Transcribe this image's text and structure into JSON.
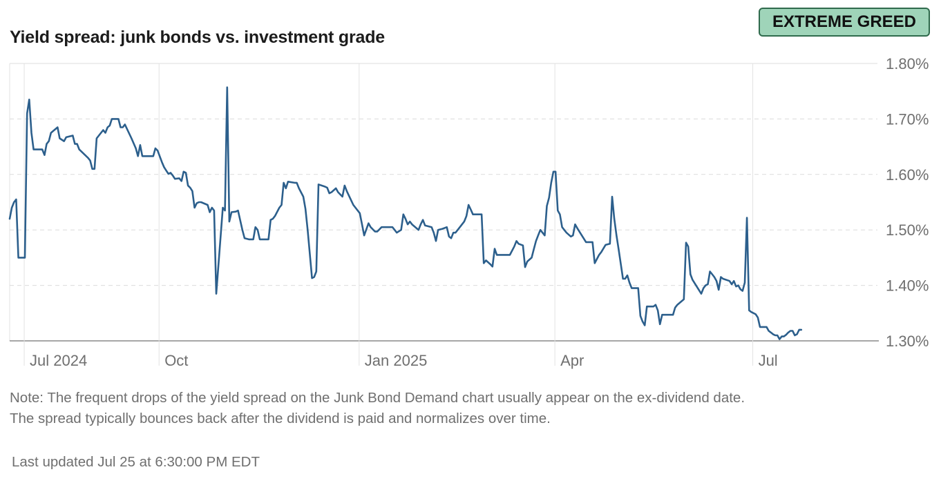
{
  "badge": {
    "label": "EXTREME GREED",
    "bg_color": "#9fd4b9",
    "border_color": "#2f6a4c"
  },
  "note": {
    "line1": "Note: The frequent drops of the yield spread on the Junk Bond Demand chart usually appear on the ex-dividend date.",
    "line2": "The spread typically bounces back after the dividend is paid and normalizes over time."
  },
  "last_updated": "Last updated Jul 25 at 6:30:00 PM EDT",
  "chart_data": {
    "type": "line",
    "title": "Yield spread: junk bonds vs. investment grade",
    "xlabel": "",
    "ylabel": "",
    "line_color": "#2c5f8c",
    "x_unit": "days since 2024-06-24",
    "xlim": [
      0,
      399
    ],
    "ylim": [
      1.3,
      1.8
    ],
    "yticks": [
      {
        "value": 1.8,
        "label": "1.80%"
      },
      {
        "value": 1.7,
        "label": "1.70%"
      },
      {
        "value": 1.6,
        "label": "1.60%"
      },
      {
        "value": 1.5,
        "label": "1.50%"
      },
      {
        "value": 1.4,
        "label": "1.40%"
      },
      {
        "value": 1.3,
        "label": "1.30%"
      }
    ],
    "xticks": [
      {
        "value": 7,
        "label": "Jul 2024"
      },
      {
        "value": 69,
        "label": "Oct"
      },
      {
        "value": 161,
        "label": "Jan 2025"
      },
      {
        "value": 251,
        "label": "Apr"
      },
      {
        "value": 342,
        "label": "Jul"
      }
    ],
    "series": [
      {
        "name": "Yield spread",
        "points": [
          [
            0,
            1.52
          ],
          [
            1,
            1.54
          ],
          [
            2,
            1.55
          ],
          [
            3,
            1.555
          ],
          [
            4,
            1.45
          ],
          [
            7,
            1.45
          ],
          [
            8,
            1.71
          ],
          [
            9,
            1.735
          ],
          [
            10,
            1.675
          ],
          [
            11,
            1.645
          ],
          [
            15,
            1.645
          ],
          [
            16,
            1.635
          ],
          [
            17,
            1.655
          ],
          [
            18,
            1.66
          ],
          [
            19,
            1.675
          ],
          [
            22,
            1.685
          ],
          [
            23,
            1.665
          ],
          [
            25,
            1.66
          ],
          [
            26,
            1.667
          ],
          [
            29,
            1.67
          ],
          [
            30,
            1.655
          ],
          [
            31,
            1.655
          ],
          [
            32,
            1.645
          ],
          [
            36,
            1.63
          ],
          [
            37,
            1.625
          ],
          [
            38,
            1.61
          ],
          [
            39,
            1.61
          ],
          [
            40,
            1.665
          ],
          [
            42,
            1.675
          ],
          [
            43,
            1.68
          ],
          [
            44,
            1.675
          ],
          [
            45,
            1.685
          ],
          [
            46,
            1.688
          ],
          [
            47,
            1.7
          ],
          [
            50,
            1.7
          ],
          [
            51,
            1.685
          ],
          [
            52,
            1.685
          ],
          [
            53,
            1.69
          ],
          [
            56,
            1.665
          ],
          [
            58,
            1.647
          ],
          [
            59,
            1.633
          ],
          [
            60,
            1.653
          ],
          [
            61,
            1.633
          ],
          [
            66,
            1.633
          ],
          [
            67,
            1.647
          ],
          [
            68,
            1.643
          ],
          [
            70,
            1.622
          ],
          [
            71,
            1.613
          ],
          [
            72,
            1.607
          ],
          [
            73,
            1.601
          ],
          [
            74,
            1.603
          ],
          [
            75,
            1.598
          ],
          [
            76,
            1.592
          ],
          [
            78,
            1.593
          ],
          [
            79,
            1.588
          ],
          [
            80,
            1.605
          ],
          [
            81,
            1.603
          ],
          [
            82,
            1.58
          ],
          [
            83,
            1.576
          ],
          [
            84,
            1.57
          ],
          [
            85,
            1.54
          ],
          [
            86,
            1.548
          ],
          [
            87,
            1.55
          ],
          [
            88,
            1.55
          ],
          [
            91,
            1.545
          ],
          [
            92,
            1.532
          ],
          [
            93,
            1.54
          ],
          [
            94,
            1.535
          ],
          [
            95,
            1.385
          ],
          [
            98,
            1.54
          ],
          [
            99,
            1.535
          ],
          [
            100,
            1.757
          ],
          [
            101,
            1.515
          ],
          [
            102,
            1.532
          ],
          [
            104,
            1.533
          ],
          [
            105,
            1.535
          ],
          [
            107,
            1.5
          ],
          [
            108,
            1.485
          ],
          [
            110,
            1.483
          ],
          [
            112,
            1.483
          ],
          [
            113,
            1.505
          ],
          [
            114,
            1.5
          ],
          [
            115,
            1.483
          ],
          [
            116,
            1.483
          ],
          [
            119,
            1.483
          ],
          [
            120,
            1.518
          ],
          [
            121,
            1.52
          ],
          [
            122,
            1.525
          ],
          [
            124,
            1.54
          ],
          [
            125,
            1.545
          ],
          [
            126,
            1.585
          ],
          [
            127,
            1.575
          ],
          [
            128,
            1.587
          ],
          [
            131,
            1.585
          ],
          [
            132,
            1.585
          ],
          [
            133,
            1.575
          ],
          [
            135,
            1.56
          ],
          [
            136,
            1.538
          ],
          [
            137,
            1.5
          ],
          [
            139,
            1.413
          ],
          [
            140,
            1.415
          ],
          [
            141,
            1.425
          ],
          [
            142,
            1.582
          ],
          [
            145,
            1.578
          ],
          [
            146,
            1.576
          ],
          [
            147,
            1.566
          ],
          [
            148,
            1.568
          ],
          [
            150,
            1.575
          ],
          [
            151,
            1.568
          ],
          [
            153,
            1.56
          ],
          [
            154,
            1.58
          ],
          [
            155,
            1.57
          ],
          [
            158,
            1.545
          ],
          [
            161,
            1.53
          ],
          [
            162,
            1.51
          ],
          [
            163,
            1.49
          ],
          [
            165,
            1.512
          ],
          [
            166,
            1.505
          ],
          [
            168,
            1.497
          ],
          [
            169,
            1.497
          ],
          [
            171,
            1.505
          ],
          [
            176,
            1.505
          ],
          [
            177,
            1.5
          ],
          [
            178,
            1.495
          ],
          [
            180,
            1.5
          ],
          [
            181,
            1.528
          ],
          [
            182,
            1.52
          ],
          [
            183,
            1.51
          ],
          [
            184,
            1.515
          ],
          [
            185,
            1.51
          ],
          [
            188,
            1.5
          ],
          [
            189,
            1.51
          ],
          [
            190,
            1.518
          ],
          [
            191,
            1.508
          ],
          [
            194,
            1.505
          ],
          [
            195,
            1.495
          ],
          [
            196,
            1.48
          ],
          [
            197,
            1.5
          ],
          [
            199,
            1.502
          ],
          [
            201,
            1.505
          ],
          [
            202,
            1.488
          ],
          [
            203,
            1.485
          ],
          [
            204,
            1.495
          ],
          [
            205,
            1.495
          ],
          [
            207,
            1.505
          ],
          [
            209,
            1.515
          ],
          [
            210,
            1.525
          ],
          [
            211,
            1.545
          ],
          [
            212,
            1.537
          ],
          [
            213,
            1.528
          ],
          [
            216,
            1.528
          ],
          [
            217,
            1.528
          ],
          [
            218,
            1.44
          ],
          [
            219,
            1.445
          ],
          [
            221,
            1.438
          ],
          [
            222,
            1.434
          ],
          [
            223,
            1.466
          ],
          [
            224,
            1.455
          ],
          [
            230,
            1.455
          ],
          [
            232,
            1.47
          ],
          [
            233,
            1.48
          ],
          [
            234,
            1.475
          ],
          [
            236,
            1.472
          ],
          [
            237,
            1.433
          ],
          [
            238,
            1.443
          ],
          [
            240,
            1.45
          ],
          [
            241,
            1.465
          ],
          [
            242,
            1.48
          ],
          [
            243,
            1.49
          ],
          [
            244,
            1.5
          ],
          [
            245,
            1.495
          ],
          [
            246,
            1.49
          ],
          [
            247,
            1.543
          ],
          [
            248,
            1.558
          ],
          [
            249,
            1.585
          ],
          [
            250,
            1.605
          ],
          [
            251,
            1.605
          ],
          [
            252,
            1.535
          ],
          [
            253,
            1.528
          ],
          [
            254,
            1.505
          ],
          [
            255,
            1.5
          ],
          [
            256,
            1.495
          ],
          [
            258,
            1.488
          ],
          [
            259,
            1.49
          ],
          [
            260,
            1.51
          ],
          [
            261,
            1.503
          ],
          [
            265,
            1.478
          ],
          [
            268,
            1.478
          ],
          [
            269,
            1.44
          ],
          [
            271,
            1.455
          ],
          [
            272,
            1.46
          ],
          [
            274,
            1.473
          ],
          [
            276,
            1.475
          ],
          [
            277,
            1.56
          ],
          [
            278,
            1.52
          ],
          [
            279,
            1.49
          ],
          [
            280,
            1.465
          ],
          [
            282,
            1.412
          ],
          [
            283,
            1.412
          ],
          [
            284,
            1.418
          ],
          [
            285,
            1.405
          ],
          [
            286,
            1.395
          ],
          [
            289,
            1.395
          ],
          [
            290,
            1.345
          ],
          [
            291,
            1.335
          ],
          [
            292,
            1.328
          ],
          [
            293,
            1.362
          ],
          [
            296,
            1.362
          ],
          [
            297,
            1.365
          ],
          [
            298,
            1.355
          ],
          [
            299,
            1.33
          ],
          [
            300,
            1.347
          ],
          [
            305,
            1.347
          ],
          [
            306,
            1.36
          ],
          [
            307,
            1.365
          ],
          [
            310,
            1.375
          ],
          [
            311,
            1.477
          ],
          [
            312,
            1.47
          ],
          [
            313,
            1.42
          ],
          [
            314,
            1.41
          ],
          [
            318,
            1.385
          ],
          [
            319,
            1.395
          ],
          [
            320,
            1.4
          ],
          [
            321,
            1.402
          ],
          [
            322,
            1.425
          ],
          [
            323,
            1.42
          ],
          [
            324,
            1.415
          ],
          [
            325,
            1.408
          ],
          [
            326,
            1.392
          ],
          [
            327,
            1.415
          ],
          [
            328,
            1.412
          ],
          [
            331,
            1.408
          ],
          [
            332,
            1.402
          ],
          [
            333,
            1.408
          ],
          [
            334,
            1.398
          ],
          [
            335,
            1.4
          ],
          [
            336,
            1.393
          ],
          [
            337,
            1.39
          ],
          [
            338,
            1.405
          ],
          [
            339,
            1.522
          ],
          [
            340,
            1.355
          ],
          [
            341,
            1.352
          ],
          [
            343,
            1.348
          ],
          [
            344,
            1.342
          ],
          [
            345,
            1.325
          ],
          [
            348,
            1.325
          ],
          [
            349,
            1.318
          ],
          [
            350,
            1.315
          ],
          [
            351,
            1.312
          ],
          [
            352,
            1.31
          ],
          [
            353,
            1.31
          ],
          [
            354,
            1.303
          ],
          [
            355,
            1.308
          ],
          [
            356,
            1.308
          ],
          [
            357,
            1.311
          ],
          [
            358,
            1.315
          ],
          [
            359,
            1.318
          ],
          [
            360,
            1.318
          ],
          [
            361,
            1.31
          ],
          [
            362,
            1.312
          ],
          [
            363,
            1.32
          ],
          [
            364,
            1.32
          ]
        ]
      }
    ]
  }
}
